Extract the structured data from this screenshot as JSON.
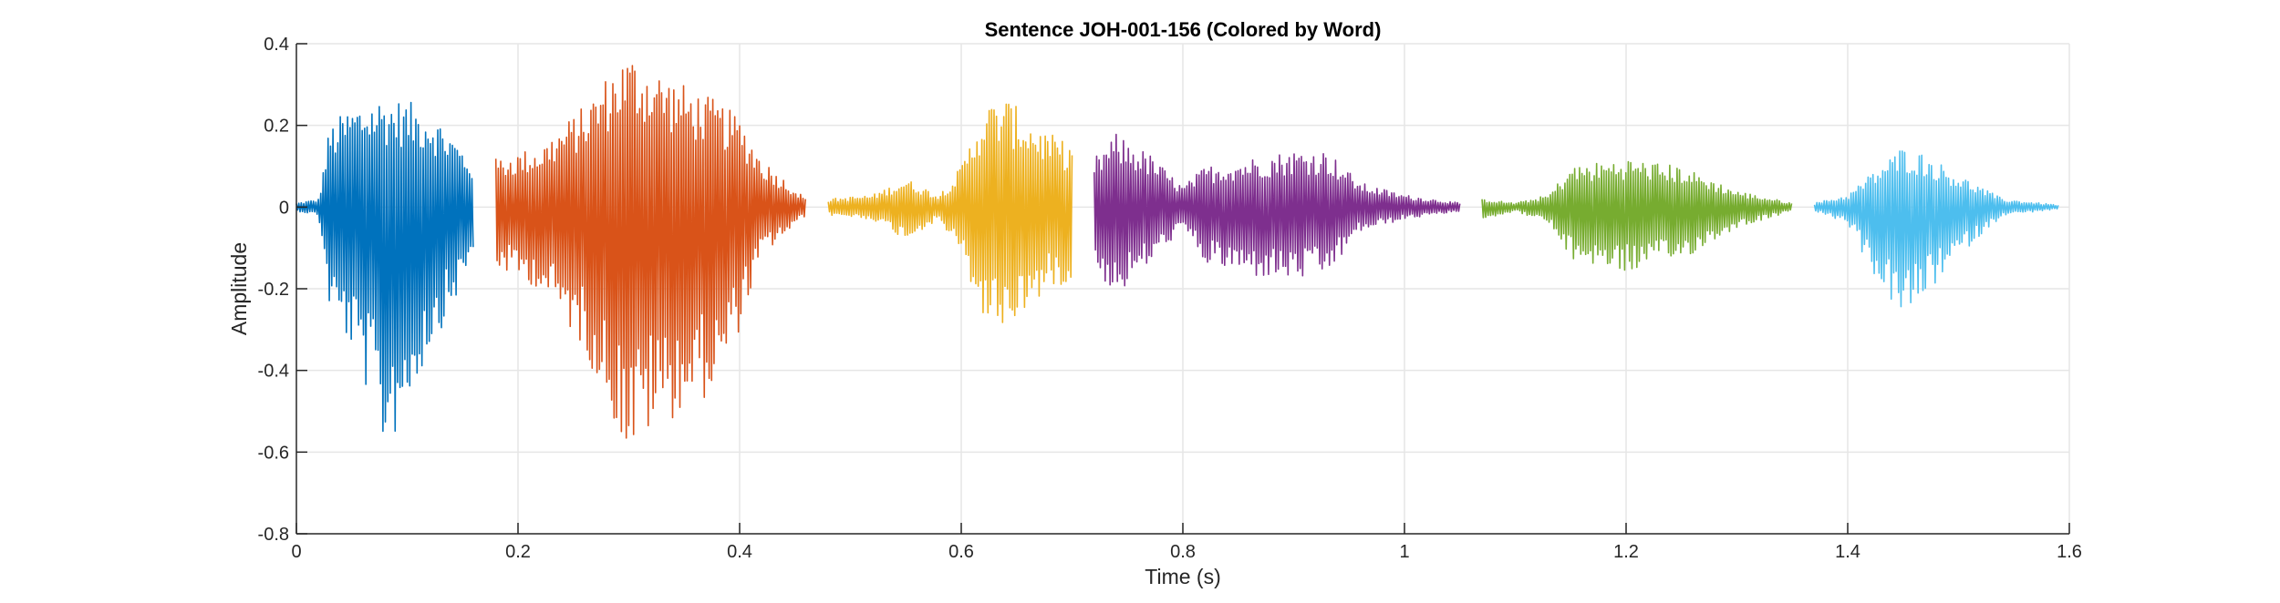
{
  "chart_data": {
    "type": "line",
    "title": "Sentence JOH-001-156 (Colored by Word)",
    "xlabel": "Time (s)",
    "ylabel": "Amplitude",
    "xlim": [
      0,
      1.6
    ],
    "ylim": [
      -0.8,
      0.4
    ],
    "xticks": [
      0,
      0.2,
      0.4,
      0.6,
      0.8,
      1,
      1.2,
      1.4,
      1.6
    ],
    "xtick_labels": [
      "0",
      "0.2",
      "0.4",
      "0.6",
      "0.8",
      "1",
      "1.2",
      "1.4",
      "1.6"
    ],
    "yticks": [
      -0.8,
      -0.6,
      -0.4,
      -0.2,
      0,
      0.2,
      0.4
    ],
    "ytick_labels": [
      "-0.8",
      "-0.6",
      "-0.4",
      "-0.2",
      "0",
      "0.2",
      "0.4"
    ],
    "grid": true,
    "legend": "none",
    "series": [
      {
        "color": "#0072BD",
        "t_start": 0.0,
        "t_end": 0.16,
        "envelope": [
          [
            0.0,
            0.01,
            -0.01
          ],
          [
            0.02,
            0.02,
            -0.02
          ],
          [
            0.03,
            0.2,
            -0.25
          ],
          [
            0.05,
            0.25,
            -0.35
          ],
          [
            0.07,
            0.27,
            -0.5
          ],
          [
            0.08,
            0.27,
            -0.61
          ],
          [
            0.1,
            0.26,
            -0.5
          ],
          [
            0.12,
            0.24,
            -0.35
          ],
          [
            0.14,
            0.18,
            -0.25
          ],
          [
            0.16,
            0.11,
            -0.12
          ]
        ]
      },
      {
        "color": "#D95319",
        "t_start": 0.18,
        "t_end": 0.46,
        "envelope": [
          [
            0.18,
            0.12,
            -0.15
          ],
          [
            0.22,
            0.15,
            -0.2
          ],
          [
            0.26,
            0.25,
            -0.35
          ],
          [
            0.29,
            0.36,
            -0.55
          ],
          [
            0.3,
            0.38,
            -0.62
          ],
          [
            0.32,
            0.35,
            -0.55
          ],
          [
            0.35,
            0.3,
            -0.5
          ],
          [
            0.38,
            0.26,
            -0.45
          ],
          [
            0.4,
            0.22,
            -0.3
          ],
          [
            0.42,
            0.12,
            -0.12
          ],
          [
            0.44,
            0.07,
            -0.07
          ],
          [
            0.46,
            0.02,
            -0.02
          ]
        ]
      },
      {
        "color": "#EDB120",
        "t_start": 0.48,
        "t_end": 0.7,
        "envelope": [
          [
            0.48,
            0.02,
            -0.02
          ],
          [
            0.52,
            0.03,
            -0.03
          ],
          [
            0.55,
            0.07,
            -0.08
          ],
          [
            0.58,
            0.03,
            -0.03
          ],
          [
            0.6,
            0.1,
            -0.12
          ],
          [
            0.62,
            0.25,
            -0.28
          ],
          [
            0.64,
            0.27,
            -0.3
          ],
          [
            0.66,
            0.22,
            -0.25
          ],
          [
            0.68,
            0.18,
            -0.2
          ],
          [
            0.7,
            0.15,
            -0.18
          ]
        ]
      },
      {
        "color": "#7E2F8E",
        "t_start": 0.72,
        "t_end": 1.05,
        "envelope": [
          [
            0.72,
            0.12,
            -0.15
          ],
          [
            0.74,
            0.18,
            -0.22
          ],
          [
            0.77,
            0.13,
            -0.14
          ],
          [
            0.8,
            0.05,
            -0.05
          ],
          [
            0.82,
            0.1,
            -0.14
          ],
          [
            0.86,
            0.12,
            -0.17
          ],
          [
            0.9,
            0.14,
            -0.18
          ],
          [
            0.93,
            0.14,
            -0.17
          ],
          [
            0.96,
            0.06,
            -0.06
          ],
          [
            1.0,
            0.03,
            -0.03
          ],
          [
            1.05,
            0.01,
            -0.01
          ]
        ]
      },
      {
        "color": "#77AC30",
        "t_start": 1.07,
        "t_end": 1.35,
        "envelope": [
          [
            1.07,
            0.02,
            -0.03
          ],
          [
            1.1,
            0.01,
            -0.01
          ],
          [
            1.13,
            0.03,
            -0.04
          ],
          [
            1.15,
            0.1,
            -0.13
          ],
          [
            1.2,
            0.12,
            -0.16
          ],
          [
            1.25,
            0.1,
            -0.13
          ],
          [
            1.3,
            0.04,
            -0.05
          ],
          [
            1.35,
            0.01,
            -0.01
          ]
        ]
      },
      {
        "color": "#4DBEEE",
        "t_start": 1.37,
        "t_end": 1.59,
        "envelope": [
          [
            1.37,
            0.01,
            -0.01
          ],
          [
            1.4,
            0.03,
            -0.04
          ],
          [
            1.42,
            0.08,
            -0.15
          ],
          [
            1.45,
            0.15,
            -0.28
          ],
          [
            1.47,
            0.13,
            -0.22
          ],
          [
            1.5,
            0.08,
            -0.12
          ],
          [
            1.54,
            0.02,
            -0.02
          ],
          [
            1.59,
            0.005,
            -0.005
          ]
        ]
      }
    ]
  }
}
